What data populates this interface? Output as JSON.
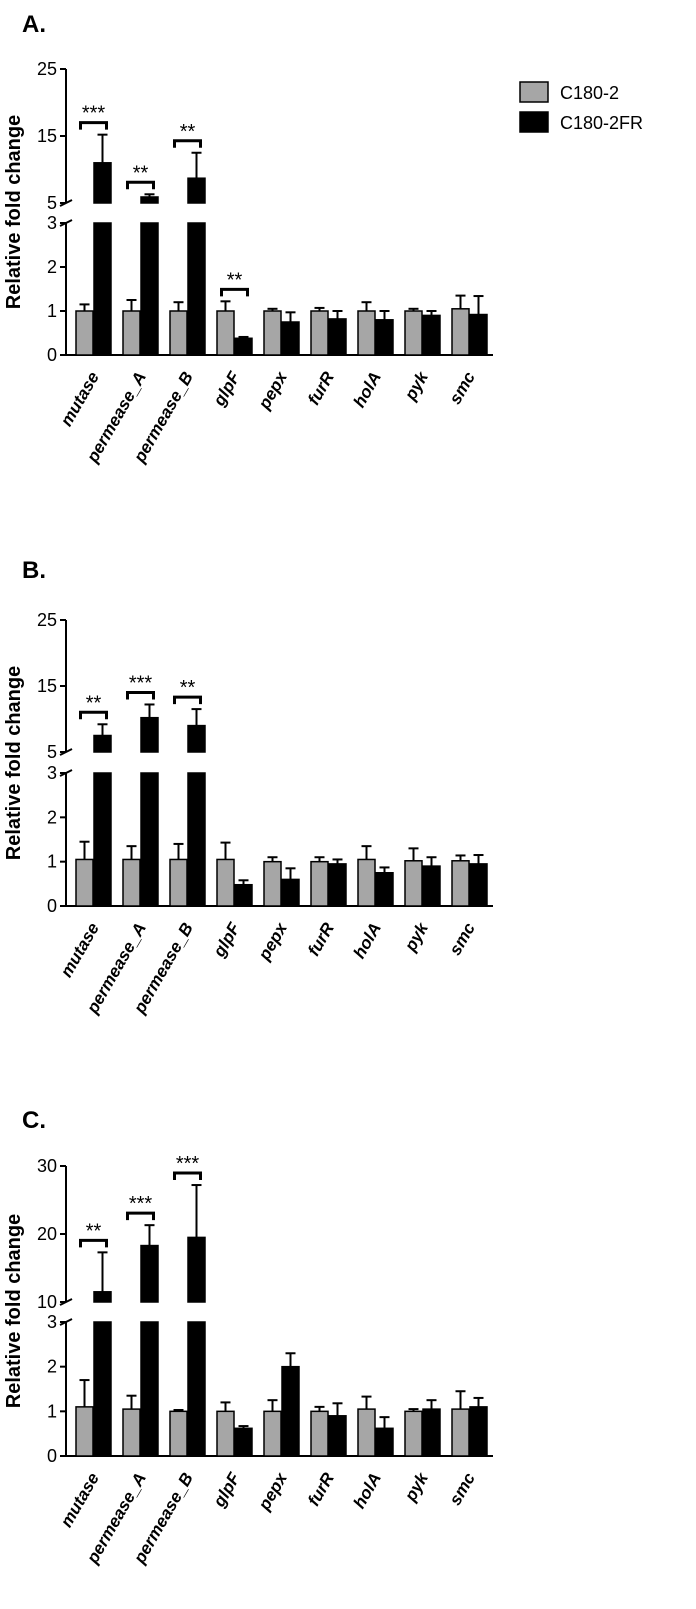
{
  "legend": [
    {
      "name": "C180-2",
      "color": "#a6a6a6"
    },
    {
      "name": "C180-2FR",
      "color": "#000000"
    }
  ],
  "chart_data": [
    {
      "type": "bar",
      "panel_label": "A.",
      "ylabel": "Relative fold change",
      "broken_axis": true,
      "y_ticks_lower": [
        "0",
        "1",
        "2",
        "3"
      ],
      "y_ticks_upper": [
        "5",
        "15",
        "25"
      ],
      "ylim_lower": [
        0,
        3
      ],
      "ylim_upper": [
        5,
        25
      ],
      "categories": [
        "mutase",
        "permease_A",
        "permease_B",
        "glpF",
        "pepx",
        "furR",
        "holA",
        "pyk",
        "smc"
      ],
      "series": [
        {
          "name": "C180-2",
          "values": [
            1.0,
            1.0,
            1.0,
            1.0,
            1.0,
            1.0,
            1.0,
            1.0,
            1.05
          ],
          "errors": [
            0.15,
            0.25,
            0.2,
            0.22,
            0.05,
            0.07,
            0.2,
            0.05,
            0.3
          ]
        },
        {
          "name": "C180-2FR",
          "values": [
            11.0,
            5.9,
            8.7,
            0.38,
            0.75,
            0.82,
            0.8,
            0.9,
            0.92
          ],
          "errors": [
            4.2,
            0.4,
            3.8,
            0.03,
            0.22,
            0.18,
            0.2,
            0.1,
            0.42
          ]
        }
      ],
      "significance": [
        {
          "category": 0,
          "label": "***"
        },
        {
          "category": 1,
          "label": "**"
        },
        {
          "category": 2,
          "label": "**"
        },
        {
          "category": 3,
          "label": "**"
        }
      ]
    },
    {
      "type": "bar",
      "panel_label": "B.",
      "ylabel": "Relative fold change",
      "broken_axis": true,
      "y_ticks_lower": [
        "0",
        "1",
        "2",
        "3"
      ],
      "y_ticks_upper": [
        "5",
        "15",
        "25"
      ],
      "ylim_lower": [
        0,
        3
      ],
      "ylim_upper": [
        5,
        25
      ],
      "categories": [
        "mutase",
        "permease_A",
        "permease_B",
        "glpF",
        "pepx",
        "furR",
        "holA",
        "pyk",
        "smc"
      ],
      "series": [
        {
          "name": "C180-2",
          "values": [
            1.05,
            1.05,
            1.05,
            1.05,
            1.0,
            1.0,
            1.05,
            1.02,
            1.02
          ],
          "errors": [
            0.4,
            0.3,
            0.35,
            0.38,
            0.1,
            0.1,
            0.3,
            0.28,
            0.12
          ]
        },
        {
          "name": "C180-2FR",
          "values": [
            7.5,
            10.2,
            9.0,
            0.48,
            0.6,
            0.95,
            0.75,
            0.9,
            0.95
          ],
          "errors": [
            1.7,
            2.0,
            2.5,
            0.1,
            0.25,
            0.1,
            0.12,
            0.2,
            0.2
          ]
        }
      ],
      "significance": [
        {
          "category": 0,
          "label": "**"
        },
        {
          "category": 1,
          "label": "***"
        },
        {
          "category": 2,
          "label": "**"
        }
      ]
    },
    {
      "type": "bar",
      "panel_label": "C.",
      "ylabel": "Relative fold change",
      "broken_axis": true,
      "y_ticks_lower": [
        "0",
        "1",
        "2",
        "3"
      ],
      "y_ticks_upper": [
        "10",
        "20",
        "30"
      ],
      "ylim_lower": [
        0,
        3
      ],
      "ylim_upper": [
        10,
        30
      ],
      "categories": [
        "mutase",
        "permease_A",
        "permease_B",
        "glpF",
        "pepx",
        "furR",
        "holA",
        "pyk",
        "smc"
      ],
      "series": [
        {
          "name": "C180-2",
          "values": [
            1.1,
            1.05,
            1.0,
            1.0,
            1.0,
            1.0,
            1.05,
            1.0,
            1.05
          ],
          "errors": [
            0.6,
            0.3,
            0.03,
            0.2,
            0.25,
            0.1,
            0.28,
            0.05,
            0.4
          ]
        },
        {
          "name": "C180-2FR",
          "values": [
            11.5,
            18.3,
            19.5,
            0.62,
            2.0,
            0.9,
            0.62,
            1.05,
            1.1
          ],
          "errors": [
            5.8,
            3.0,
            7.7,
            0.05,
            0.3,
            0.28,
            0.25,
            0.2,
            0.2
          ]
        }
      ],
      "significance": [
        {
          "category": 0,
          "label": "**"
        },
        {
          "category": 1,
          "label": "***"
        },
        {
          "category": 2,
          "label": "***"
        }
      ]
    }
  ]
}
